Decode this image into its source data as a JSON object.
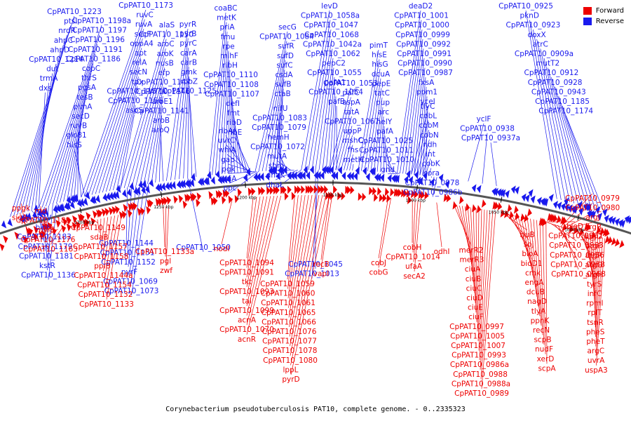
{
  "caption": "Corynebacterium pseudotuberculosis PAT10, complete genome. - 0..2335323",
  "legend": [
    {
      "label": "Forward",
      "color": "#ee0000"
    },
    {
      "label": "Reverse",
      "color": "#1a1aee"
    }
  ],
  "colors": {
    "forward": "#ee0000",
    "reverse": "#1a1aee",
    "backbone": "#555555"
  },
  "ticks": [
    "1300 kbp",
    "1250 kbp",
    "1200 kbp",
    "1150 kbp",
    "1100 kbp",
    "1050 kbp",
    "1000 kbp"
  ],
  "reverse_labels": [
    "CpPAT10_1223",
    "ptsI",
    "nrdR",
    "ahpC",
    "ahpD",
    "CpPAT10_1214",
    "dut",
    "trmA",
    "dxs",
    "CpPAT10_1198a",
    "CpPAT10_1197",
    "CpPAT10_1196",
    "CpPAT10_1191",
    "CpPAT10_1186",
    "copC",
    "thrS",
    "pgsA",
    "tesB",
    "pimA",
    "secD",
    "ruvB",
    "glo81",
    "hisS",
    "CpPAT10_1173",
    "ruvC",
    "ruvA",
    "secF",
    "oppA4",
    "apt",
    "relA",
    "secN",
    "tpx",
    "CpPAT10_1157a",
    "CpPAT10_1156",
    "aspS",
    "alaS",
    "CpPAT10_1150",
    "aroC",
    "aroK",
    "nusB",
    "efp",
    "CpPAT10_1147",
    "CpPAT10_1146",
    "aroE1",
    "CpPAT10_1141",
    "aroB",
    "aroQ",
    "pyrR",
    "pyrB",
    "pyrC",
    "carA",
    "carB",
    "gmk",
    "rpoZ",
    "CpPAT10_1125",
    "coaBC",
    "metK",
    "priA",
    "fmu",
    "rpe",
    "mihF",
    "ribH",
    "CpPAT10_1110",
    "CpPAT10_1108",
    "CpPAT10_1107",
    "defI",
    "fmt",
    "ribD",
    "ribE",
    "ribA",
    "uvrC",
    "whiA",
    "gap",
    "pgk",
    "tpiA",
    "ppc",
    "secG",
    "CpPAT10_1084",
    "sufR",
    "sufD",
    "sufC",
    "csdA",
    "sufB",
    "ctaB",
    "nifU",
    "CpPAT10_1083",
    "CpPAT10_1079",
    "hemH",
    "CpPAT10_1072",
    "mutA",
    "sbm",
    "dhaK",
    "dhaL",
    "levD",
    "CpPAT10_1058a",
    "CpPAT10_1047",
    "CpPAT10_1068",
    "CpPAT10_1042a",
    "CpPAT10_1062",
    "pepC2",
    "CpPAT10_1055",
    "pafA1",
    "CpPAT10_1054",
    "pafB",
    "CpPAT10_1053",
    "pafC",
    "aspA",
    "tatA",
    "CpPAT10_1067",
    "uppP",
    "mshC",
    "fhs",
    "metH",
    "pimT",
    "hisE",
    "hisG",
    "dcuA",
    "pepE",
    "tatC",
    "pup",
    "arc",
    "helY",
    "pafA",
    "CpPAT10_1025",
    "CpPAT10_1011",
    "CpPAT10_1010",
    "gnd",
    "deaD2",
    "CpPAT10_1001",
    "CpPAT10_1000",
    "CpPAT10_0999",
    "CpPAT10_0992",
    "CpPAT10_0991",
    "CpPAT10_0990",
    "CpPAT10_0987",
    "fxsA",
    "ppm1",
    "yceI",
    "tlyC",
    "cobL",
    "cobM",
    "cobN",
    "ndh",
    "int",
    "cobK",
    "cora",
    "CpPAT10_0978",
    "CpPAT10_0986b",
    "yclF",
    "CpPAT10_0938",
    "CpPAT10_0937a",
    "CpPAT10_0925",
    "pknD",
    "CpPAT10_0923",
    "doxX",
    "atrC",
    "CpPAT10_0909a",
    "mutT2",
    "CpPAT10_0912",
    "CpPAT10_0928",
    "CpPAT10_0943",
    "CpPAT10_1185",
    "CpPAT10_1174",
    "bioW",
    "bioF",
    "CpPAT10_1183",
    "CpPAT10_1179",
    "CpPAT10_1181",
    "kstR",
    "CpPAT10_1136",
    "CpPAT10_1144",
    "CpPAT10_1151",
    "CpPAT10_1152",
    "pyrF",
    "CpPAT10_1069",
    "CpPAT10_1073",
    "CpPAT10_1050",
    "CpPAT10_1045",
    "CpPAT10_1013"
  ],
  "forward_labels": [
    "ppgk",
    "sigA",
    "rnd",
    "CpPAT10_1189",
    "msrB",
    "CpPAT10_1176",
    "CpPAT10_1163",
    "CpPAT10_1149",
    "sdaB",
    "CpPAT10_1157",
    "CpPAT10_1158",
    "ppiB",
    "CpPAT10_1144a",
    "CpPAT10_1154",
    "CpPAT10_1132",
    "CpPAT10_1133",
    "CpPAT10_1133a",
    "pgl",
    "zwf",
    "nodI",
    "CpPAT10_1094",
    "CpPAT10_1091",
    "tkt",
    "CpPAT10_1093",
    "tal",
    "CpPAT10_1099",
    "acnA",
    "CpPAT10_1070",
    "acnR",
    "CpPAT10_1059",
    "CpPAT10_1060",
    "CpPAT10_1061",
    "CpPAT10_1065",
    "CpPAT10_1066",
    "CpPAT10_1076",
    "CpPAT10_1077",
    "CpPAT10_1078",
    "CpPAT10_1080",
    "lppL",
    "pyrD",
    "recB",
    "vapI",
    "cobJ",
    "cobG",
    "cobH",
    "CpPAT10_1014",
    "ufaA",
    "secA2",
    "odhI",
    "merR2",
    "merR3",
    "ciuA",
    "ciuB",
    "ciuC",
    "ciuD",
    "ciuE",
    "ciuF",
    "CpPAT10_0997",
    "CpPAT10_1005",
    "CpPAT10_1007",
    "CpPAT10_0993",
    "CpPAT10_0986a",
    "CpPAT10_0988",
    "CpPAT10_0988a",
    "CpPAT10_0989",
    "rluB",
    "soj",
    "bioA",
    "bioD1",
    "cmk",
    "engA",
    "dcuB",
    "nagD",
    "tlyA",
    "ppnK",
    "recN",
    "scpB",
    "nudF",
    "xerD",
    "scpA",
    "bioD",
    "CpPAT10_0962",
    "CpPAT10_0963",
    "CpPAT10_0956",
    "CpPAT10_0958",
    "CpPAT10_0968",
    "CpPAT10_0979",
    "CpPAT10_0980",
    "argJ",
    "argB",
    "argD",
    "argF",
    "argR",
    "argG",
    "argH",
    "tyrS",
    "infC",
    "rpmI",
    "rplT",
    "tsnR",
    "pheS",
    "pheT",
    "argC",
    "uvrA",
    "uspA3"
  ]
}
